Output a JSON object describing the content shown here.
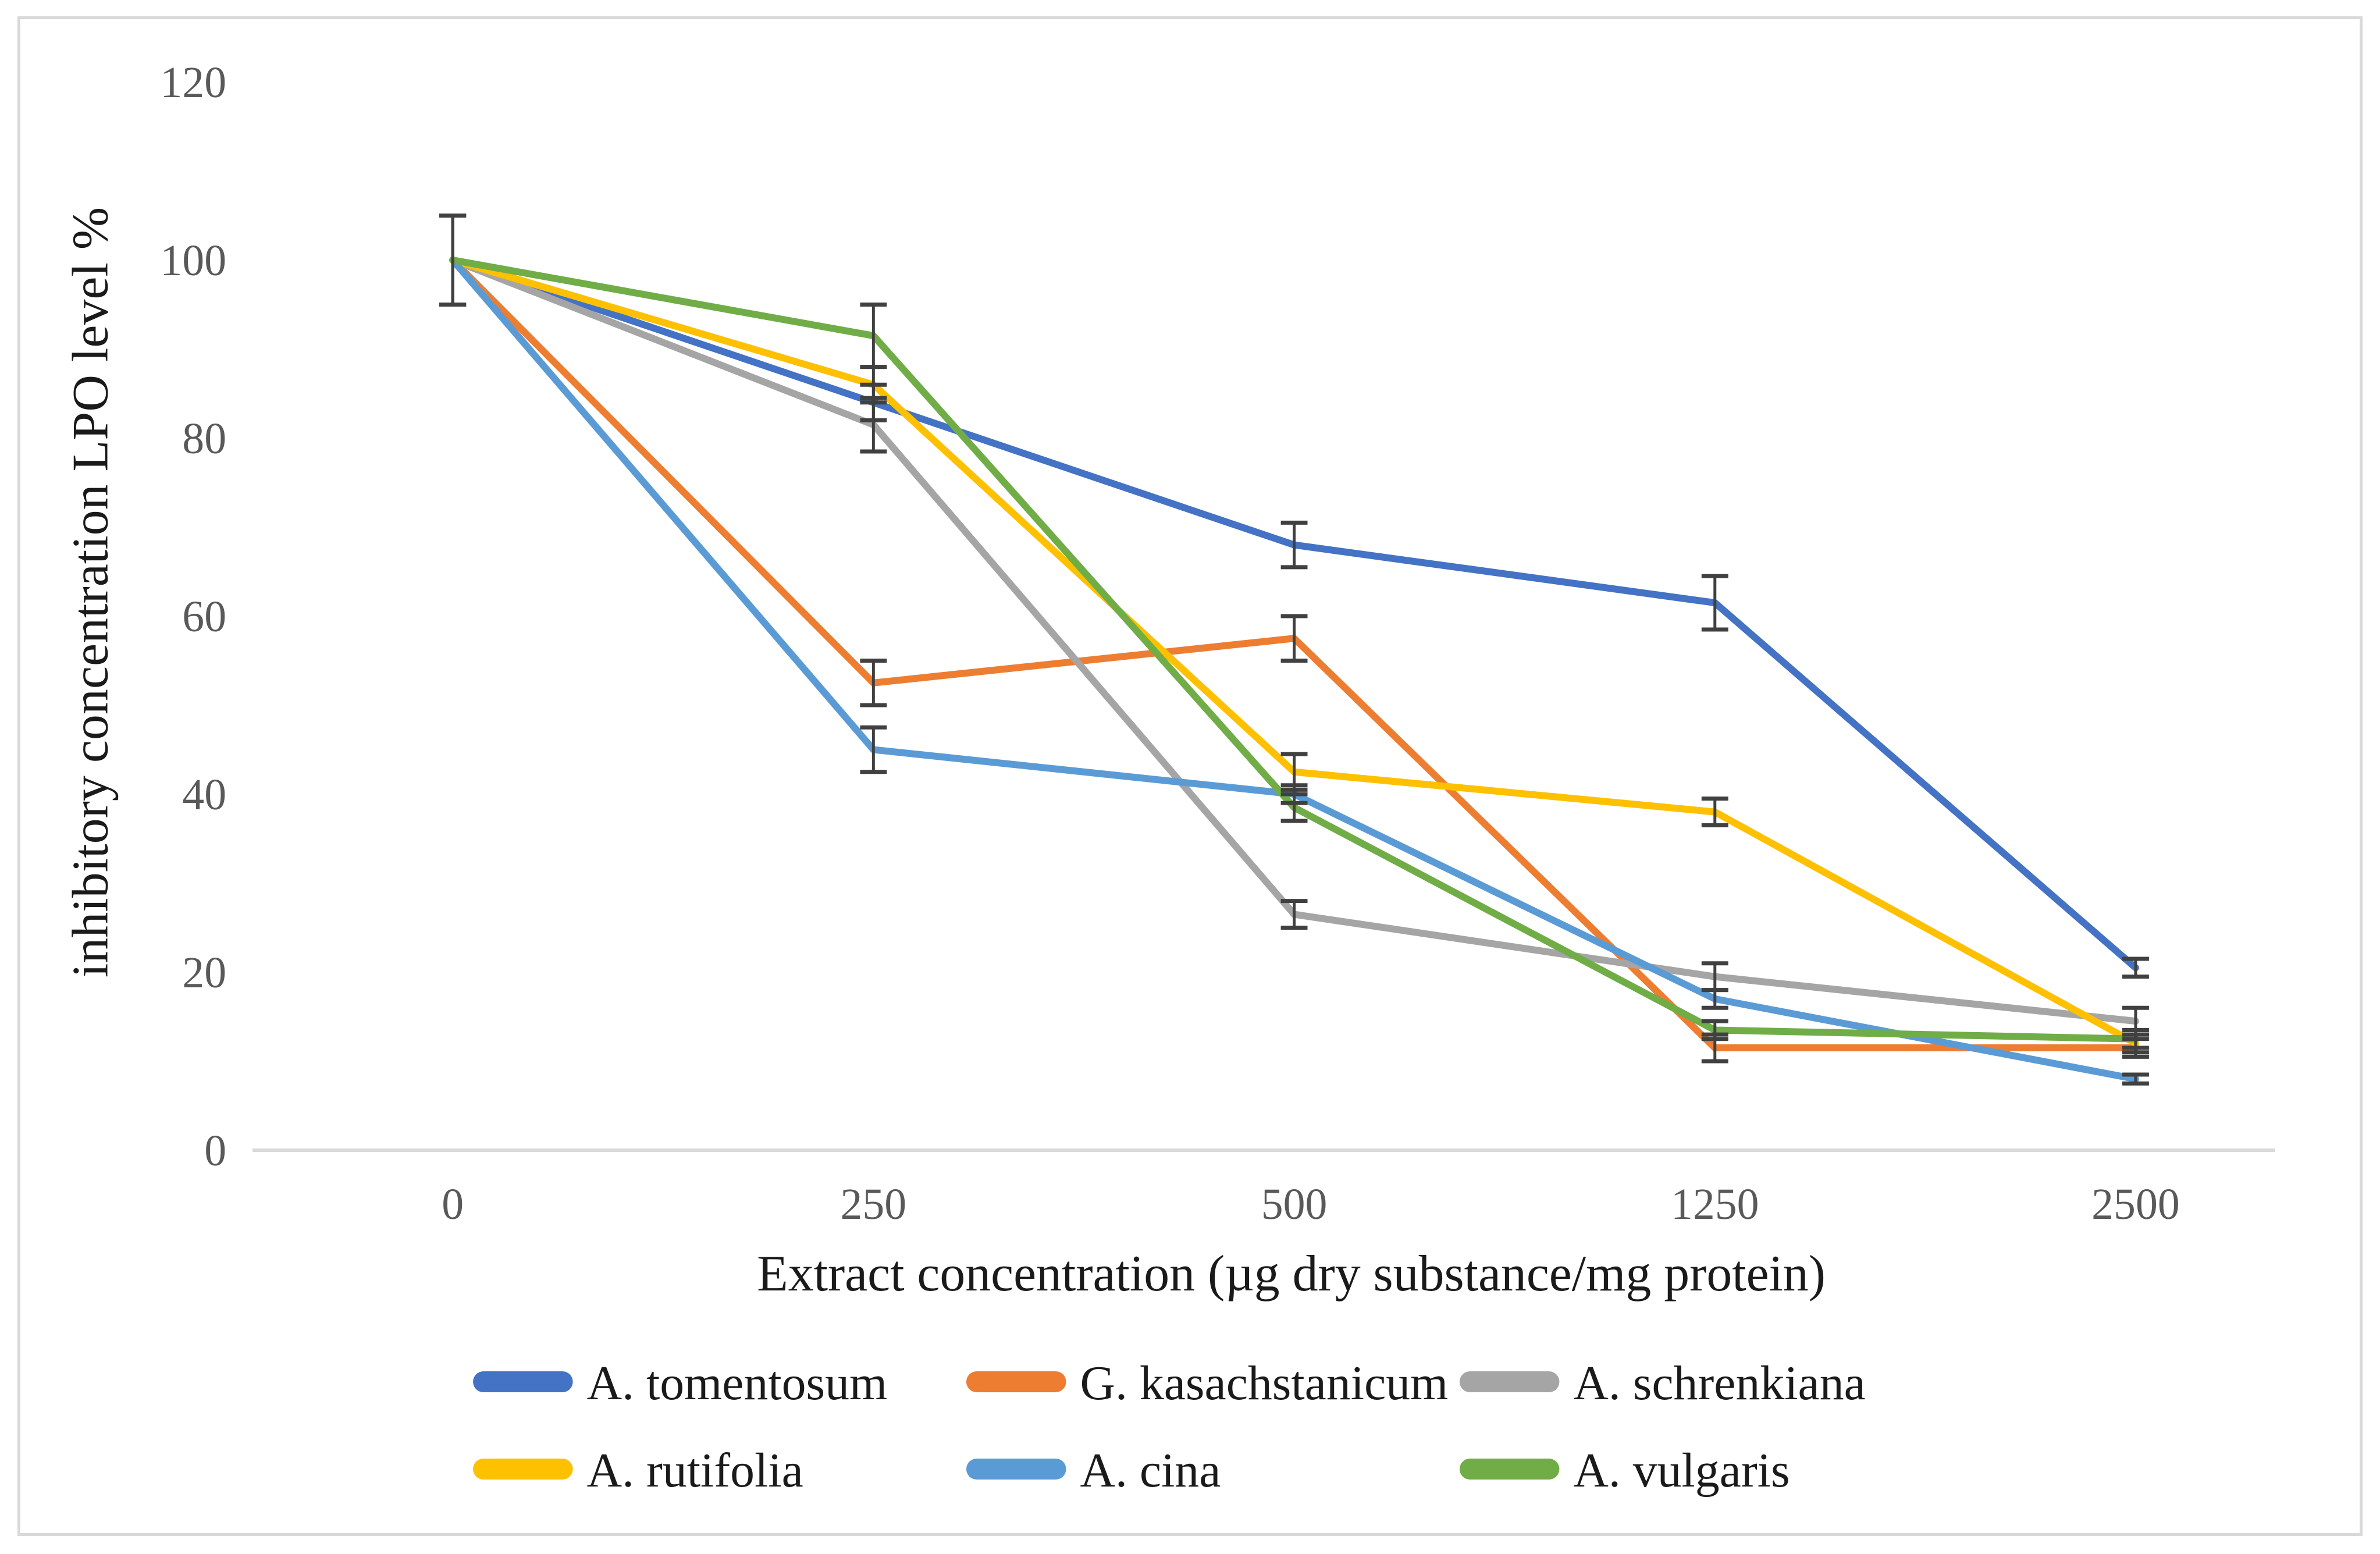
{
  "chart_data": {
    "type": "line",
    "title": "",
    "xlabel": "Extract concentration (µg dry substance/mg protein)",
    "ylabel": "inhibitory concentration  LPO level %",
    "categories": [
      0,
      250,
      500,
      1250,
      2500
    ],
    "x_tick_labels": [
      "0",
      "250",
      "500",
      "1250",
      "2500"
    ],
    "y_tick_labels": [
      "0",
      "20",
      "40",
      "60",
      "80",
      "100",
      "120"
    ],
    "ylim": [
      0,
      120
    ],
    "ytick_step": 20,
    "grid": false,
    "legend_position": "bottom",
    "error_bars": true,
    "series": [
      {
        "name": "A. tomentosum",
        "color": "#4472c4",
        "values": [
          100,
          84,
          68,
          61.5,
          20.5
        ],
        "errors": [
          5,
          2,
          2.5,
          3,
          1
        ]
      },
      {
        "name": "G. kasachstanicum",
        "color": "#ed7d31",
        "values": [
          100,
          52.5,
          57.5,
          11.5,
          11.5
        ],
        "errors": [
          5,
          2.5,
          2.5,
          1.5,
          1
        ]
      },
      {
        "name": "A. schrenkiana",
        "color": "#a5a5a5",
        "values": [
          100,
          81.5,
          26.5,
          19.5,
          14.5
        ],
        "errors": [
          5,
          3,
          1.5,
          1.5,
          1.5
        ]
      },
      {
        "name": "A. rutifolia",
        "color": "#ffc000",
        "values": [
          100,
          86,
          42.5,
          38,
          12
        ],
        "errors": [
          5,
          2,
          2,
          1.5,
          1
        ]
      },
      {
        "name": "A. cina",
        "color": "#5b9bd5",
        "values": [
          100,
          45,
          40,
          17,
          8
        ],
        "errors": [
          5,
          2.5,
          1,
          1,
          0.5
        ]
      },
      {
        "name": "A. vulgaris",
        "color": "#70ad47",
        "values": [
          100,
          91.5,
          38.5,
          13.5,
          12.5
        ],
        "errors": [
          5,
          3.5,
          1.5,
          1,
          1
        ]
      }
    ],
    "colors": {
      "axis_line": "#d9d9d9",
      "tick_label": "#595959",
      "error_bar": "#404040",
      "frame_border": "#d9d9d9",
      "background": "#ffffff"
    }
  }
}
